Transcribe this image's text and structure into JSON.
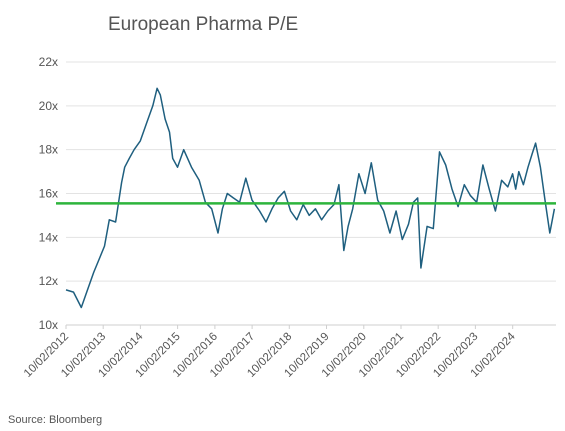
{
  "chart_data": {
    "type": "line",
    "title": "European Pharma P/E",
    "source": "Source: Bloomberg",
    "xlabel": "",
    "ylabel": "",
    "x_range": [
      "2012-10-02",
      "2025-12-01"
    ],
    "ylim": [
      10,
      22
    ],
    "y_ticks": [
      10,
      12,
      14,
      16,
      18,
      20,
      22
    ],
    "y_tick_labels": [
      "10x",
      "12x",
      "14x",
      "16x",
      "18x",
      "20x",
      "22x"
    ],
    "x_tick_labels": [
      "10/02/2012",
      "10/02/2013",
      "10/02/2014",
      "10/02/2015",
      "10/02/2016",
      "10/02/2017",
      "10/02/2018",
      "10/02/2019",
      "10/02/2020",
      "10/02/2021",
      "10/02/2022",
      "10/02/2023",
      "10/02/2024"
    ],
    "x_tick_dates": [
      "2012-10-02",
      "2013-10-02",
      "2014-10-02",
      "2015-10-02",
      "2016-10-02",
      "2017-10-02",
      "2018-10-02",
      "2019-10-02",
      "2020-10-02",
      "2021-10-02",
      "2022-10-02",
      "2023-10-02",
      "2024-10-02"
    ],
    "grid": "horizontal",
    "legend": "none",
    "series": [
      {
        "color": "#1f5f7f",
        "x": [
          "2012-10-02",
          "2012-12-15",
          "2013-03-01",
          "2013-05-01",
          "2013-07-01",
          "2013-09-01",
          "2013-10-15",
          "2013-12-01",
          "2014-02-01",
          "2014-04-01",
          "2014-05-01",
          "2014-06-15",
          "2014-08-01",
          "2014-10-01",
          "2014-12-01",
          "2015-02-01",
          "2015-03-15",
          "2015-04-15",
          "2015-06-01",
          "2015-07-15",
          "2015-08-15",
          "2015-10-01",
          "2015-12-01",
          "2016-02-15",
          "2016-05-01",
          "2016-07-01",
          "2016-09-01",
          "2016-11-01",
          "2016-12-15",
          "2017-02-01",
          "2017-04-01",
          "2017-06-01",
          "2017-08-01",
          "2017-10-01",
          "2017-12-15",
          "2018-02-15",
          "2018-04-15",
          "2018-06-15",
          "2018-08-15",
          "2018-10-15",
          "2018-12-15",
          "2019-02-15",
          "2019-04-15",
          "2019-06-15",
          "2019-08-15",
          "2019-10-15",
          "2019-12-15",
          "2020-02-01",
          "2020-03-20",
          "2020-05-01",
          "2020-06-15",
          "2020-08-15",
          "2020-10-15",
          "2020-12-15",
          "2021-02-15",
          "2021-04-15",
          "2021-06-15",
          "2021-08-15",
          "2021-10-15",
          "2021-12-15",
          "2022-02-01",
          "2022-03-15",
          "2022-04-15",
          "2022-06-15",
          "2022-08-15",
          "2022-10-15",
          "2022-12-15",
          "2023-02-15",
          "2023-04-15",
          "2023-06-15",
          "2023-08-15",
          "2023-10-15",
          "2023-12-15",
          "2024-02-15",
          "2024-04-15",
          "2024-06-15",
          "2024-08-15",
          "2024-10-01",
          "2024-11-01",
          "2024-12-01",
          "2025-01-15",
          "2025-03-01",
          "2025-04-10",
          "2025-05-15",
          "2025-07-01",
          "2025-08-15",
          "2025-10-01",
          "2025-11-15"
        ],
        "y": [
          11.6,
          11.5,
          10.8,
          11.6,
          12.4,
          13.1,
          13.6,
          14.8,
          14.7,
          16.5,
          17.2,
          17.6,
          18.0,
          18.4,
          19.2,
          20.0,
          20.8,
          20.5,
          19.4,
          18.8,
          17.6,
          17.2,
          18.0,
          17.2,
          16.6,
          15.6,
          15.3,
          14.2,
          15.3,
          16.0,
          15.8,
          15.6,
          16.7,
          15.7,
          15.2,
          14.7,
          15.3,
          15.8,
          16.1,
          15.2,
          14.8,
          15.5,
          15.0,
          15.3,
          14.8,
          15.2,
          15.5,
          16.4,
          13.4,
          14.5,
          15.3,
          16.9,
          16.0,
          17.4,
          15.7,
          15.2,
          14.2,
          15.2,
          13.9,
          14.6,
          15.6,
          15.8,
          12.6,
          14.5,
          14.4,
          17.9,
          17.3,
          16.2,
          15.4,
          16.4,
          15.9,
          15.6,
          17.3,
          16.2,
          15.2,
          16.6,
          16.3,
          16.9,
          16.2,
          17.0,
          16.4,
          17.2,
          17.8,
          18.3,
          17.2,
          15.7,
          14.2,
          15.3
        ]
      }
    ],
    "reference_line": {
      "y": 15.55,
      "color": "#2db43c"
    }
  }
}
